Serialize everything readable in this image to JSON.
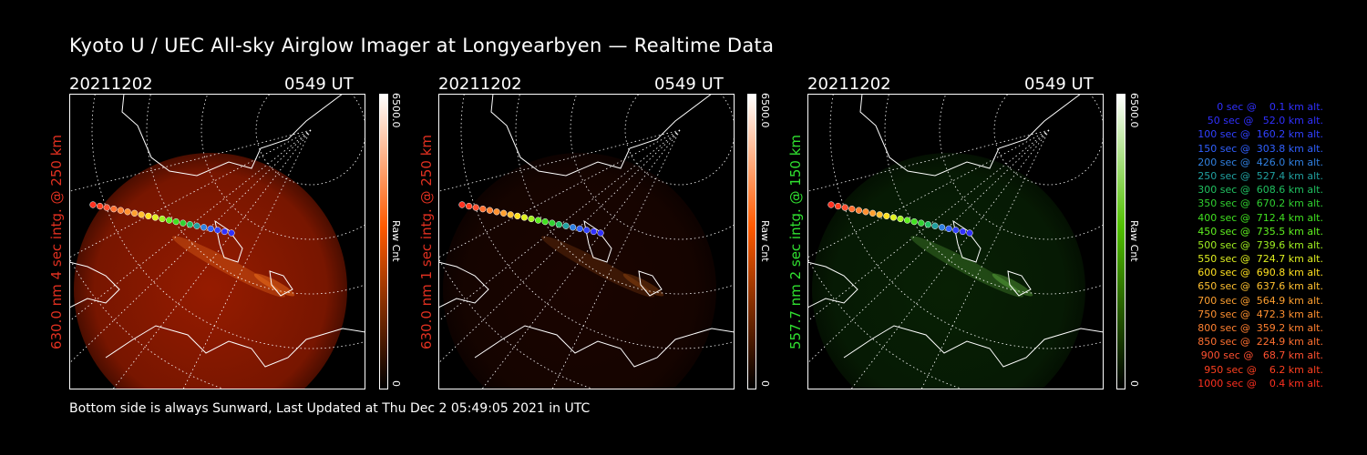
{
  "title": "Kyoto U / UEC All-sky Airglow Imager at Longyearbyen — Realtime Data",
  "footer": "Bottom side is always Sunward, Last Updated at Thu Dec  2 05:49:05 2021 in UTC",
  "panels": [
    {
      "date": "20211202",
      "time": "0549 UT",
      "ylabel": "630.0 nm 4 sec intg. @ 250 km",
      "ylabel_color": "#e03020",
      "cbar_max": "6500.0",
      "cbar_label": "Raw Cnt",
      "cbar_min": "0",
      "cbar_gradient": "#ff5a00",
      "image_color": "#b02000",
      "intensity": 0.85
    },
    {
      "date": "20211202",
      "time": "0549 UT",
      "ylabel": "630.0 nm 1 sec intg. @ 250 km",
      "ylabel_color": "#e03020",
      "cbar_max": "6500.0",
      "cbar_label": "Raw Cnt",
      "cbar_min": "0",
      "cbar_gradient": "#ff5a00",
      "image_color": "#3a0a00",
      "intensity": 0.45
    },
    {
      "date": "20211202",
      "time": "0549 UT",
      "ylabel": "557.7 nm 2 sec intg. @ 150 km",
      "ylabel_color": "#30e030",
      "cbar_max": "6500.0",
      "cbar_label": "Raw Cnt",
      "cbar_min": "0",
      "cbar_gradient": "#50c000",
      "image_color": "#0e3a08",
      "intensity": 0.55
    }
  ],
  "legend": [
    {
      "text": "0 sec @    0.1 km alt.",
      "color": "#3030ff"
    },
    {
      "text": "50 sec @   52.0 km alt.",
      "color": "#3030ff"
    },
    {
      "text": "100 sec @  160.2 km alt.",
      "color": "#3040ff"
    },
    {
      "text": "150 sec @  303.8 km alt.",
      "color": "#3060ff"
    },
    {
      "text": "200 sec @  426.0 km alt.",
      "color": "#3080e0"
    },
    {
      "text": "250 sec @  527.4 km alt.",
      "color": "#20a0a0"
    },
    {
      "text": "300 sec @  608.6 km alt.",
      "color": "#20c060"
    },
    {
      "text": "350 sec @  670.2 km alt.",
      "color": "#30d030"
    },
    {
      "text": "400 sec @  712.4 km alt.",
      "color": "#40e020"
    },
    {
      "text": "450 sec @  735.5 km alt.",
      "color": "#60f020"
    },
    {
      "text": "500 sec @  739.6 km alt.",
      "color": "#a0f020"
    },
    {
      "text": "550 sec @  724.7 km alt.",
      "color": "#e0f020"
    },
    {
      "text": "600 sec @  690.8 km alt.",
      "color": "#ffe020"
    },
    {
      "text": "650 sec @  637.6 km alt.",
      "color": "#ffc030"
    },
    {
      "text": "700 sec @  564.9 km alt.",
      "color": "#ffa030"
    },
    {
      "text": "750 sec @  472.3 km alt.",
      "color": "#ff9030"
    },
    {
      "text": "800 sec @  359.2 km alt.",
      "color": "#ff8030"
    },
    {
      "text": "850 sec @  224.9 km alt.",
      "color": "#ff7030"
    },
    {
      "text": "900 sec @   68.7 km alt.",
      "color": "#ff5030"
    },
    {
      "text": "950 sec @    6.2 km alt.",
      "color": "#ff4020"
    },
    {
      "text": "1000 sec @    0.4 km alt.",
      "color": "#ff3020"
    }
  ]
}
